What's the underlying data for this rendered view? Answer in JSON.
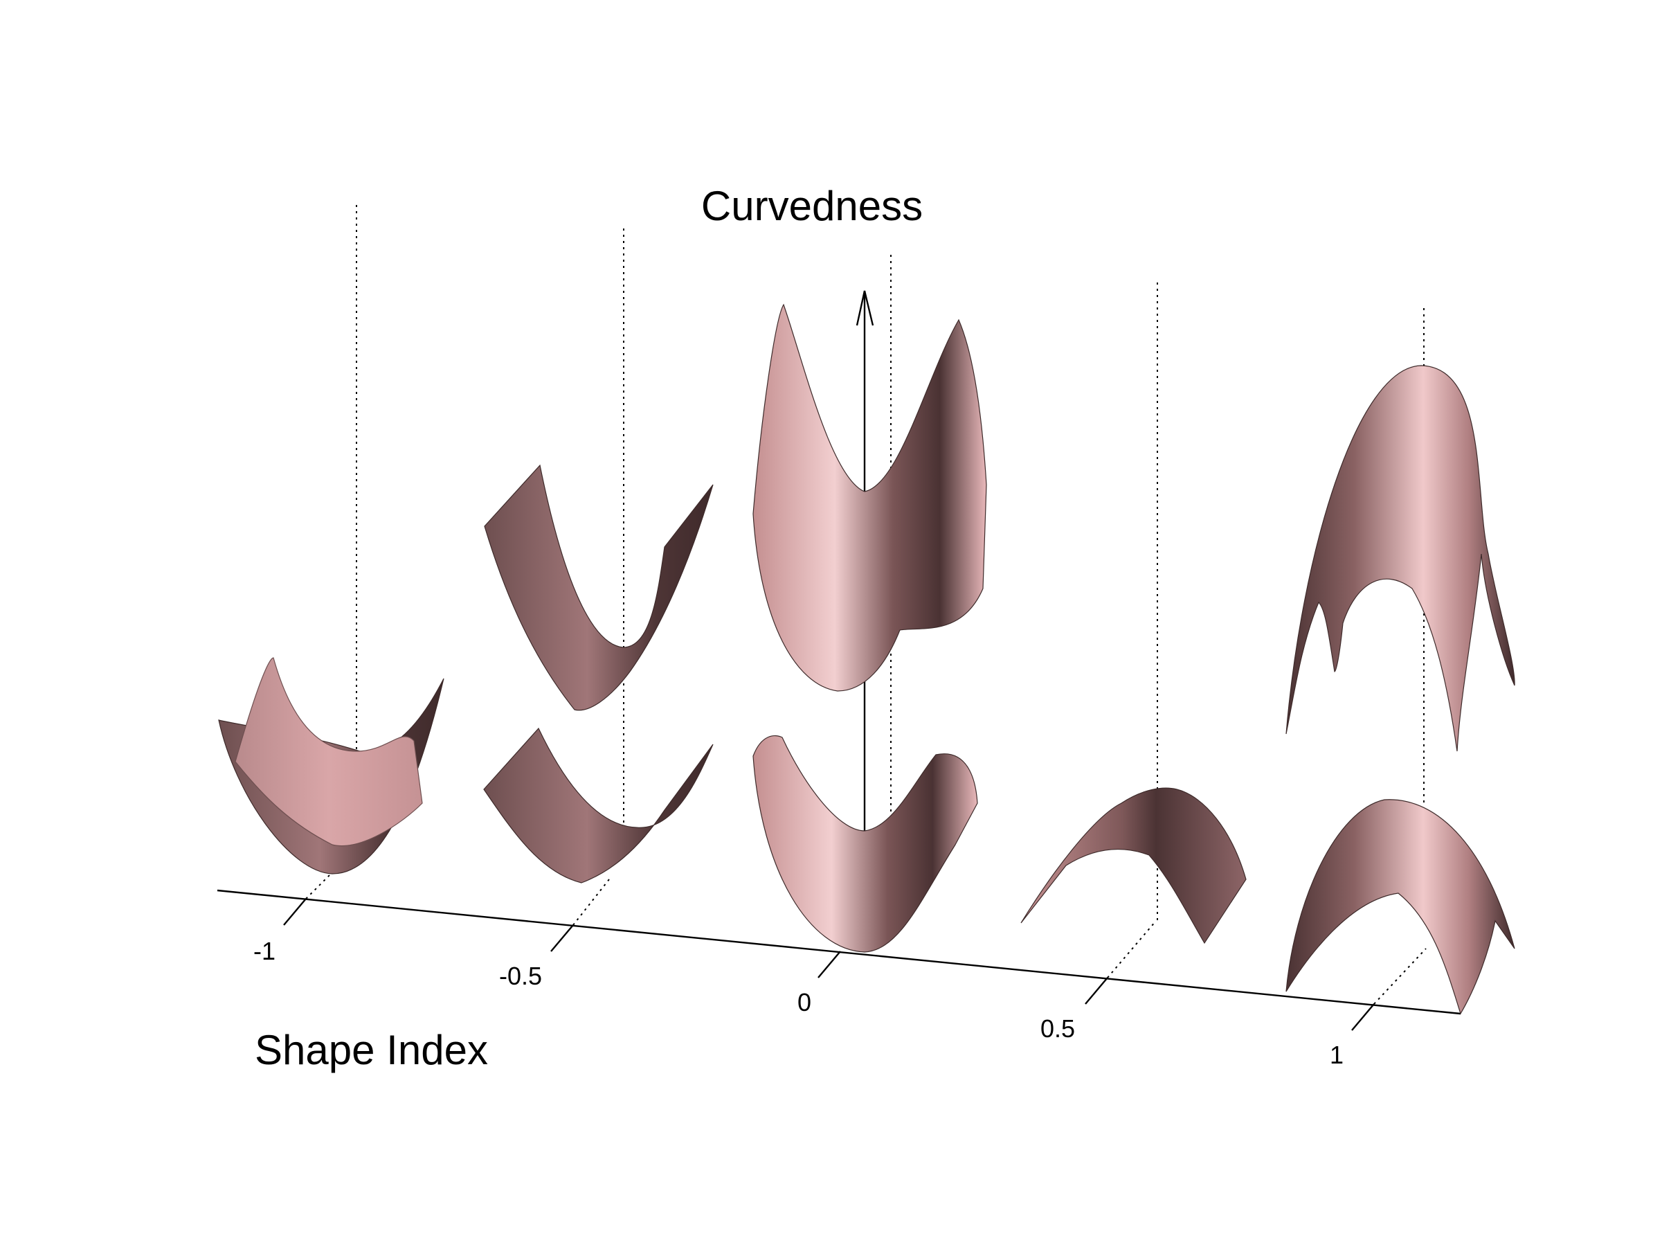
{
  "figure": {
    "title": "Curvedness",
    "xlabel": "Shape Index"
  },
  "chart_data": {
    "type": "diagram",
    "title": "Curvedness",
    "xlabel": "Shape Index",
    "ylabel": "Curvedness",
    "x_ticks": [
      {
        "value": -1,
        "label": "-1"
      },
      {
        "value": -0.5,
        "label": "-0.5"
      },
      {
        "value": 0,
        "label": "0"
      },
      {
        "value": 0.5,
        "label": "0.5"
      },
      {
        "value": 1,
        "label": "1"
      }
    ],
    "surfaces": [
      {
        "shape_index": -1,
        "curvedness_level": 1,
        "shape": "cup"
      },
      {
        "shape_index": -0.5,
        "curvedness_level": 1,
        "shape": "trough"
      },
      {
        "shape_index": -0.5,
        "curvedness_level": 2,
        "shape": "trough"
      },
      {
        "shape_index": 0,
        "curvedness_level": 1,
        "shape": "saddle"
      },
      {
        "shape_index": 0,
        "curvedness_level": 2,
        "shape": "saddle"
      },
      {
        "shape_index": 0.5,
        "curvedness_level": 1,
        "shape": "ridge"
      },
      {
        "shape_index": 1,
        "curvedness_level": 1,
        "shape": "cap"
      },
      {
        "shape_index": 1,
        "curvedness_level": 2,
        "shape": "cap"
      }
    ],
    "surface_color": "#c99494"
  }
}
